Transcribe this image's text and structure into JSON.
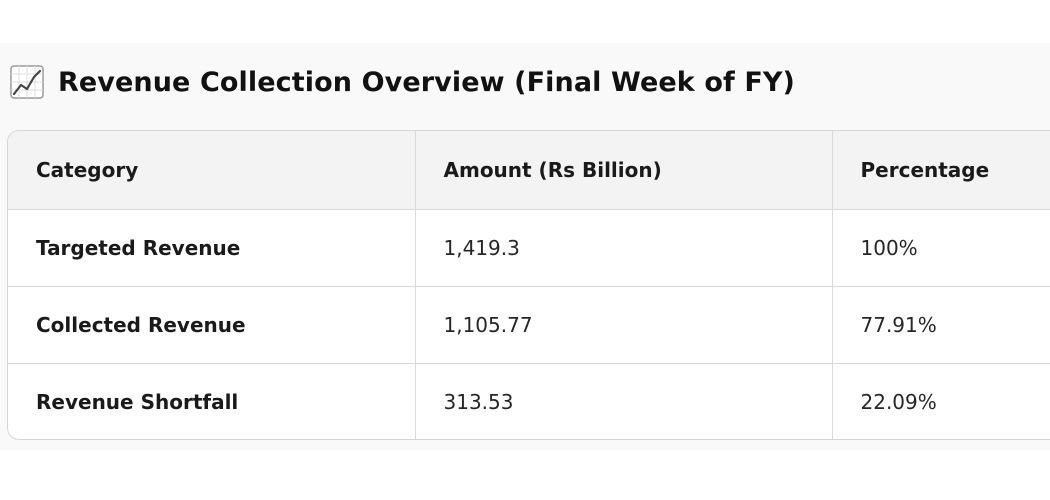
{
  "title": "Revenue Collection Overview (Final Week of FY)",
  "title_icon": "chart-increasing-icon",
  "table": {
    "headers": [
      "Category",
      "Amount (Rs Billion)",
      "Percentage"
    ],
    "rows": [
      [
        "Targeted Revenue",
        "1,419.3",
        "100%"
      ],
      [
        "Collected Revenue",
        "1,105.77",
        "77.91%"
      ],
      [
        "Revenue Shortfall",
        "313.53",
        "22.09%"
      ]
    ]
  }
}
